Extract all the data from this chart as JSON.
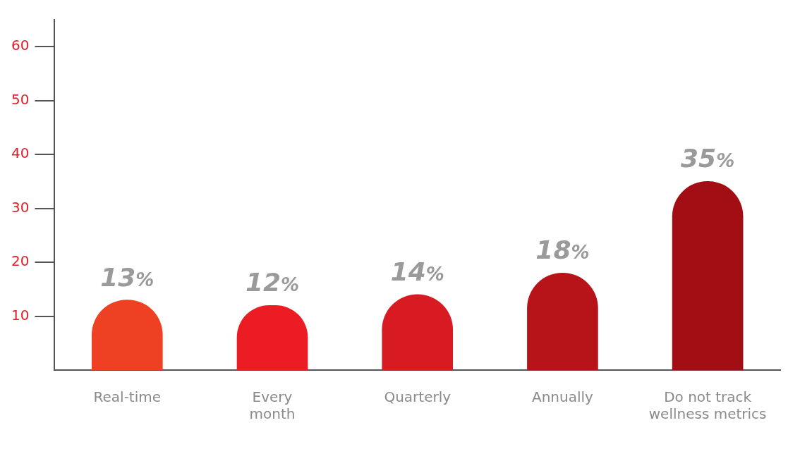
{
  "chart_data": {
    "type": "bar",
    "categories": [
      "Real-time",
      "Every month",
      "Quarterly",
      "Annually",
      "Do not track wellness metrics"
    ],
    "values": [
      13,
      12,
      14,
      18,
      35
    ],
    "colors": [
      "#ee4123",
      "#ec1c24",
      "#d81a22",
      "#b61419",
      "#a30e14"
    ],
    "value_labels": [
      "13%",
      "12%",
      "14%",
      "18%",
      "35%"
    ],
    "ylim": [
      0,
      65
    ],
    "yticks": [
      10,
      20,
      30,
      40,
      50,
      60
    ],
    "grid": false,
    "legend": false
  }
}
